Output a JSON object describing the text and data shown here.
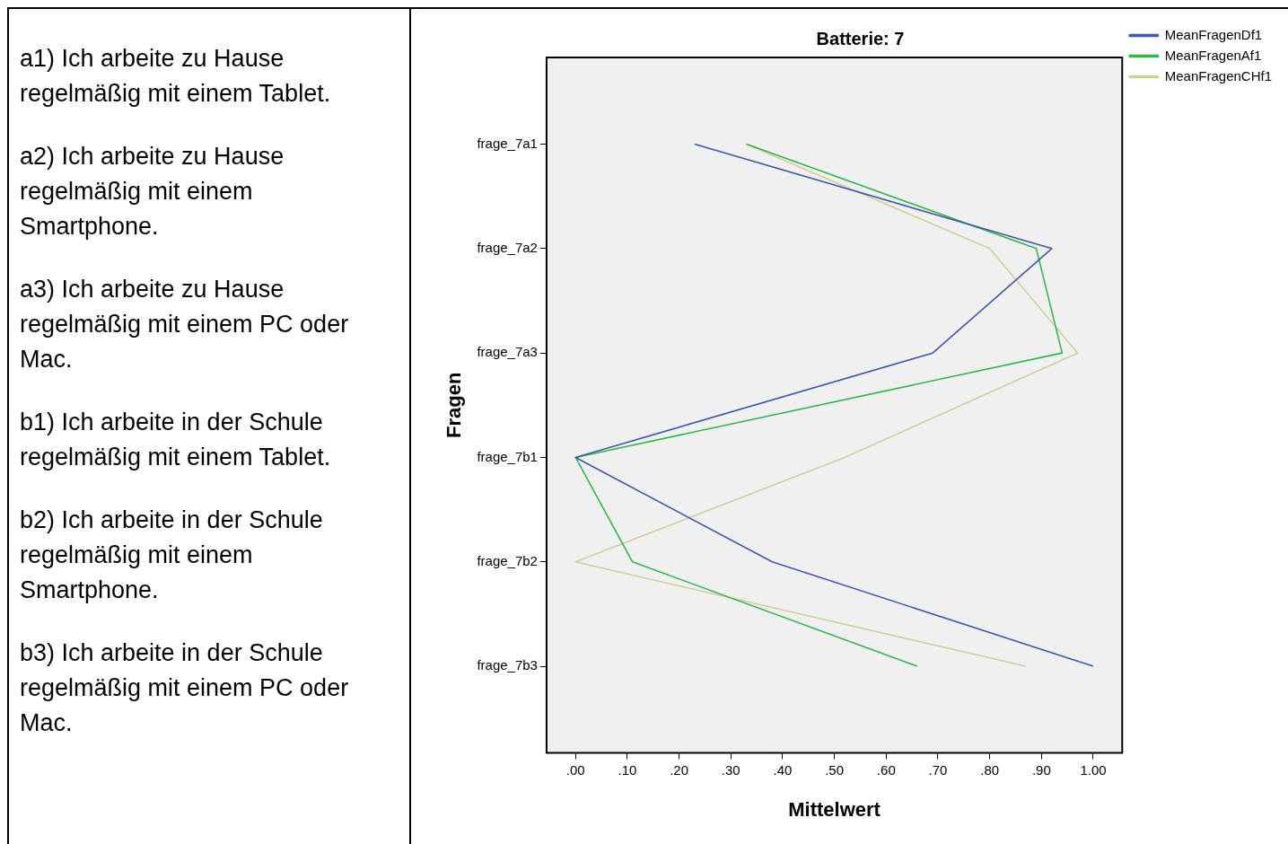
{
  "chart_data": {
    "type": "line",
    "orientation": "horizontal",
    "title": "Batterie: 7",
    "xlabel": "Mittelwert",
    "ylabel": "Fragen",
    "categories": [
      "frage_7a1",
      "frage_7a2",
      "frage_7a3",
      "frage_7b1",
      "frage_7b2",
      "frage_7b3"
    ],
    "series": [
      {
        "name": "MeanFragenDf1",
        "color": "#3e58ac",
        "values": [
          0.23,
          0.92,
          0.69,
          0,
          0.38,
          1.0
        ]
      },
      {
        "name": "MeanFragenAf1",
        "color": "#2eb848",
        "values": [
          0.33,
          0.89,
          0.94,
          0,
          0.11,
          0.66
        ]
      },
      {
        "name": "MeanFragenCHf1",
        "color": "#d3ce97",
        "values": [
          0.33,
          0.8,
          0.97,
          0.52,
          0,
          0.87
        ]
      }
    ],
    "xlim": [
      -0.056,
      1.056
    ],
    "xticks": [
      {
        "value": 0,
        "label": ".00"
      },
      {
        "value": 0.1,
        "label": ".10"
      },
      {
        "value": 0.2,
        "label": ".20"
      },
      {
        "value": 0.3,
        "label": ".30"
      },
      {
        "value": 0.4,
        "label": ".40"
      },
      {
        "value": 0.5,
        "label": ".50"
      },
      {
        "value": 0.6,
        "label": ".60"
      },
      {
        "value": 0.7,
        "label": ".70"
      },
      {
        "value": 0.8,
        "label": ".80"
      },
      {
        "value": 0.9,
        "label": ".90"
      },
      {
        "value": 1,
        "label": "1.00"
      }
    ],
    "grid": false,
    "legend": "top right",
    "marker": "none",
    "line_style": "solid",
    "annotations": [
      "a1) Ich arbeite zu Hause regelmäßig mit einem Tablet.",
      "a2) Ich arbeite zu Hause regelmäßig mit einem Smartphone.",
      "a3) Ich arbeite zu Hause regelmäßig mit einem PC oder Mac.",
      "b1) Ich arbeite in der Schule regelmäßig mit einem Tablet.",
      "b2) Ich arbeite in der Schule regelmäßig mit einem Smartphone.",
      "b3) Ich arbeite in der Schule regelmäßig mit einem PC oder Mac."
    ]
  }
}
